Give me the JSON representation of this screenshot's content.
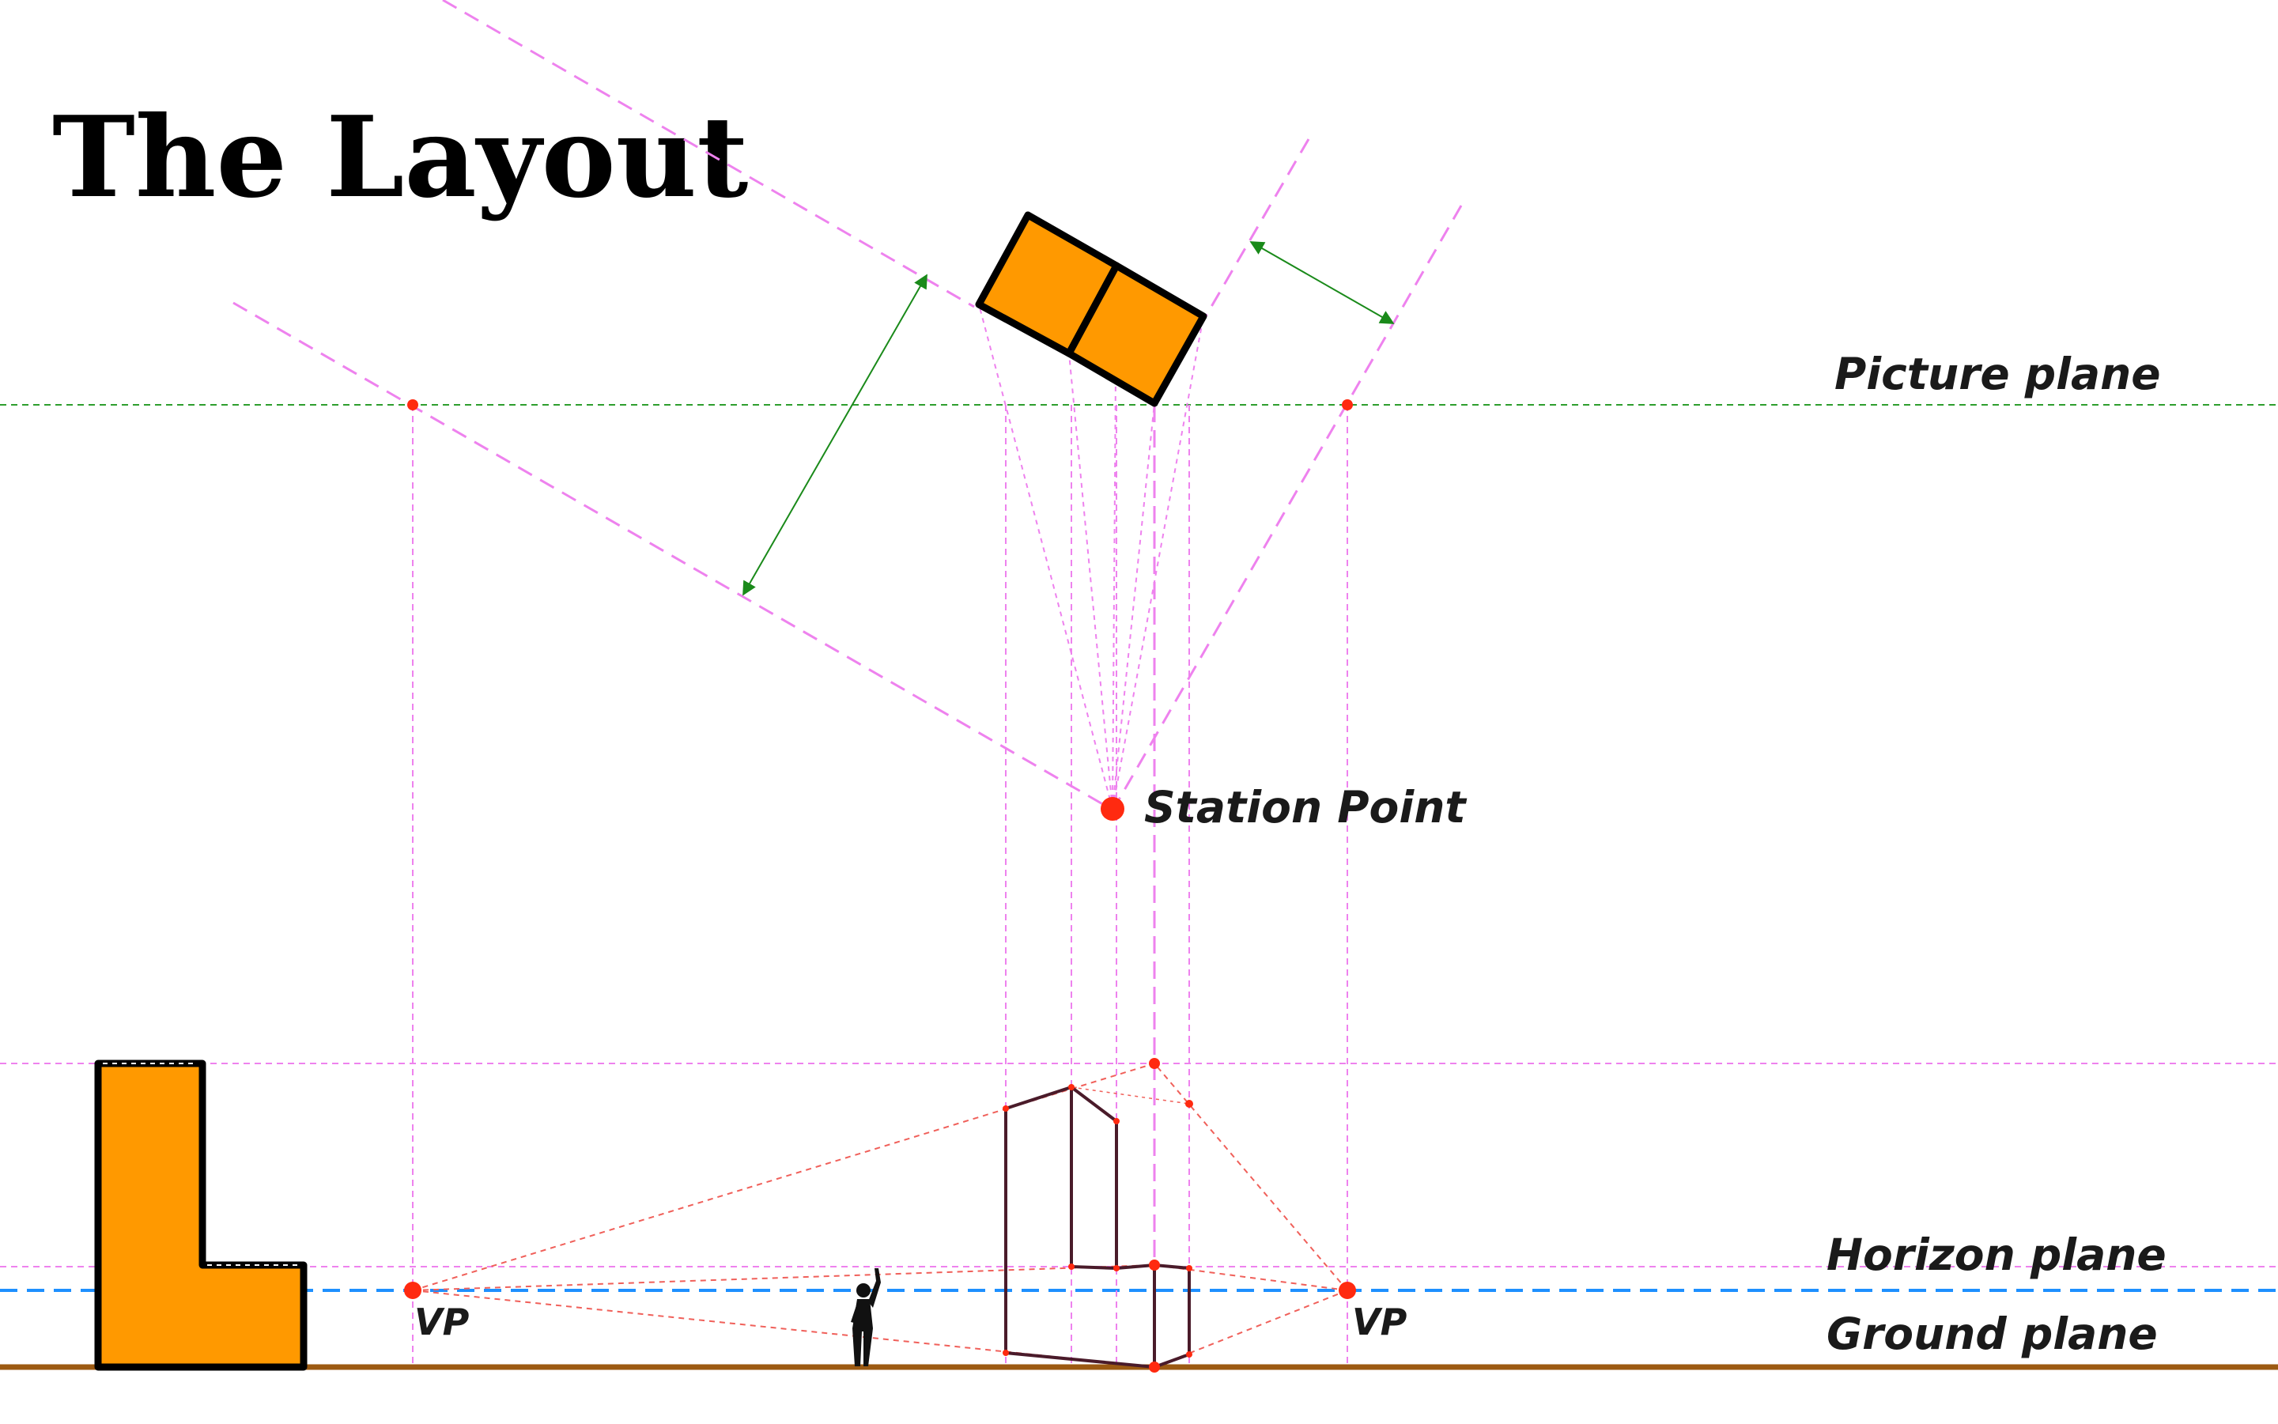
{
  "title": "The Layout",
  "labels": {
    "picture_plane": "Picture plane",
    "station_point": "Station Point",
    "horizon_plane": "Horizon plane",
    "ground_plane": "Ground plane",
    "vp_left": "VP",
    "vp_right": "VP"
  },
  "colors": {
    "object_fill": "#ff9900",
    "object_outline": "#000000",
    "construction_lines": "#ee82ee",
    "picture_plane_line": "#2e9e2e",
    "horizon_line": "#1e90ff",
    "ground_line": "#9c5a12",
    "points": "#ff2a10",
    "perspective_lines": "#f0605a",
    "dimension_arrows": "#1a8a1a"
  },
  "icons": [
    "human-figure-icon"
  ]
}
